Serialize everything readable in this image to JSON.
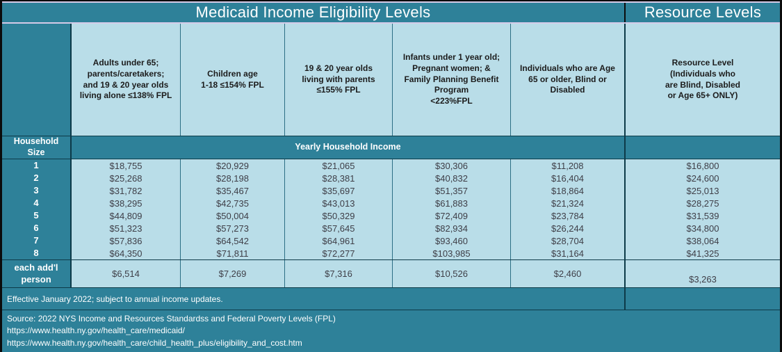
{
  "title_bar": {
    "main_title": "Medicaid Income Eligibility Levels",
    "resource_title": "Resource Levels"
  },
  "headers": {
    "household": "Household\nSize",
    "yearly_income": "Yearly Household Income",
    "columns": [
      "Adults under 65;\nparents/caretakers;\nand 19 & 20 year olds\nliving alone ≤138% FPL",
      "Children age\n1-18 ≤154% FPL",
      "19 & 20 year olds\nliving with parents\n≤155% FPL",
      "Infants under 1 year old;\nPregnant women; &\nFamily Planning Benefit\nProgram\n<223%FPL",
      "Individuals who are Age\n65 or older, Blind or\nDisabled"
    ],
    "resource": "Resource Level\n(Individuals who\nare Blind, Disabled\nor Age 65+ ONLY)"
  },
  "rows": [
    {
      "size": "1",
      "values": [
        "$18,755",
        "$20,929",
        "$21,065",
        "$30,306",
        "$11,208",
        "$16,800"
      ]
    },
    {
      "size": "2",
      "values": [
        "$25,268",
        "$28,198",
        "$28,381",
        "$40,832",
        "$16,404",
        "$24,600"
      ]
    },
    {
      "size": "3",
      "values": [
        "$31,782",
        "$35,467",
        "$35,697",
        "$51,357",
        "$18,864",
        "$25,013"
      ]
    },
    {
      "size": "4",
      "values": [
        "$38,295",
        "$42,735",
        "$43,013",
        "$61,883",
        "$21,324",
        "$28,275"
      ]
    },
    {
      "size": "5",
      "values": [
        "$44,809",
        "$50,004",
        "$50,329",
        "$72,409",
        "$23,784",
        "$31,539"
      ]
    },
    {
      "size": "6",
      "values": [
        "$51,323",
        "$57,273",
        "$57,645",
        "$82,934",
        "$26,244",
        "$34,800"
      ]
    },
    {
      "size": "7",
      "values": [
        "$57,836",
        "$64,542",
        "$64,961",
        "$93,460",
        "$28,704",
        "$38,064"
      ]
    },
    {
      "size": "8",
      "values": [
        "$64,350",
        "$71,811",
        "$72,277",
        "$103,985",
        "$31,164",
        "$41,325"
      ]
    }
  ],
  "addl_row": {
    "label": "each add'l\nperson",
    "values": [
      "$6,514",
      "$7,269",
      "$7,316",
      "$10,526",
      "$2,460",
      "$3,263"
    ]
  },
  "footer": {
    "effective_note": "Effective January 2022; subject to annual income updates.",
    "source_lines": [
      "Source: 2022 NYS Income and Resources Standardss and Federal Poverty Levels (FPL)",
      "https://www.health.ny.gov/health_care/medicaid/",
      "https://www.health.ny.gov/health_care/child_health_plus/eligibility_and_cost.htm"
    ]
  },
  "colors": {
    "teal": "#2e8199",
    "light_blue": "#b9dde8",
    "lavender_accent": "#d6cbe8",
    "frame_black": "#0b0b0b",
    "divider_dark": "#0d3a48",
    "header_text": "#1c1c1c",
    "value_text": "#3e3e47",
    "band_text": "#ffffff"
  }
}
